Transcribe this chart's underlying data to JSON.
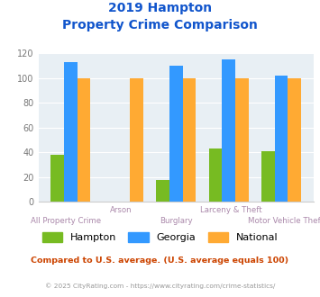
{
  "title_line1": "2019 Hampton",
  "title_line2": "Property Crime Comparison",
  "categories": [
    "All Property Crime",
    "Arson",
    "Burglary",
    "Larceny & Theft",
    "Motor Vehicle Theft"
  ],
  "hampton": [
    38,
    0,
    18,
    43,
    41
  ],
  "georgia": [
    113,
    0,
    110,
    115,
    102
  ],
  "national": [
    100,
    100,
    100,
    100,
    100
  ],
  "hampton_color": "#77bb22",
  "georgia_color": "#3399ff",
  "national_color": "#ffaa33",
  "bg_color": "#e8eff4",
  "title_color": "#1155cc",
  "xlabel_top_color": "#aa88aa",
  "xlabel_bot_color": "#aa88aa",
  "footer_color": "#cc4400",
  "footer2_color": "#999999",
  "footer_text": "Compared to U.S. average. (U.S. average equals 100)",
  "footer2_text": "© 2025 CityRating.com - https://www.cityrating.com/crime-statistics/",
  "ylim": [
    0,
    120
  ],
  "yticks": [
    0,
    20,
    40,
    60,
    80,
    100,
    120
  ],
  "bar_width": 0.25
}
